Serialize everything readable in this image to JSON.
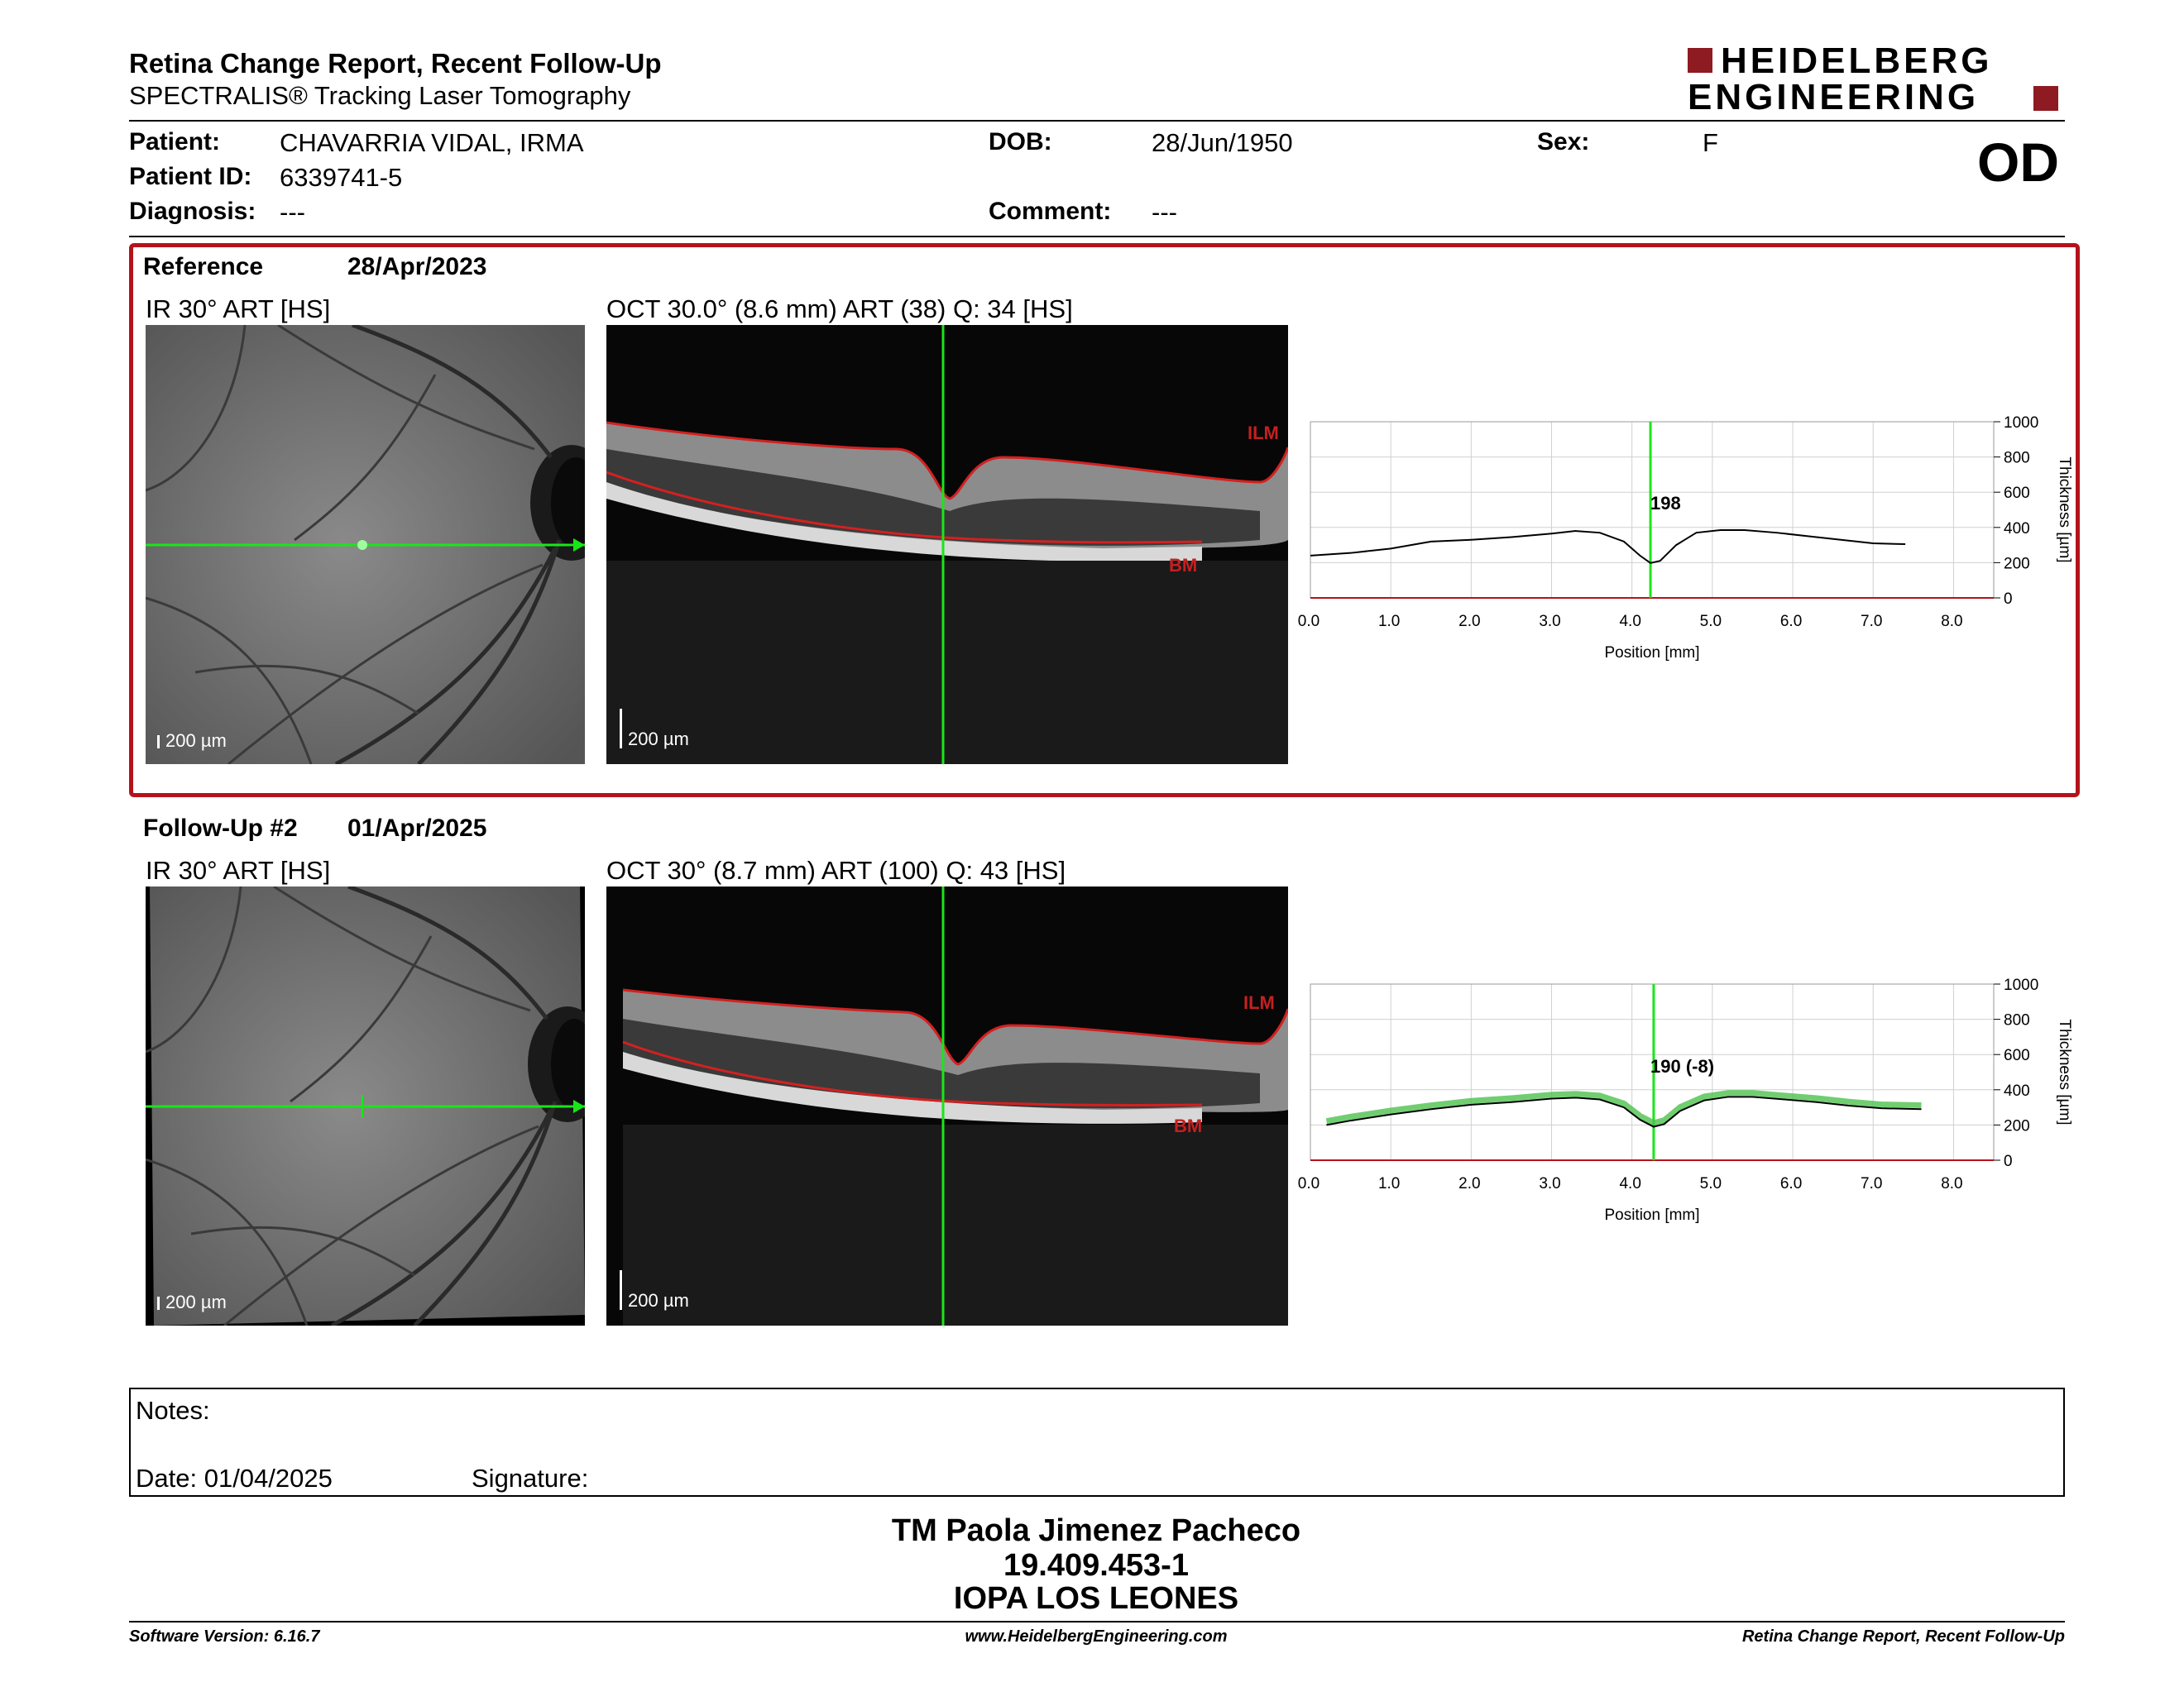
{
  "header": {
    "title": "Retina Change Report, Recent Follow-Up",
    "subtitle": "SPECTRALIS® Tracking Laser Tomography",
    "logo_line1": "HEIDELBERG",
    "logo_line2": "ENGINEERING",
    "eye": "OD"
  },
  "patient": {
    "patient_label": "Patient:",
    "patient_value": "CHAVARRIA VIDAL, IRMA",
    "id_label": "Patient ID:",
    "id_value": "6339741-5",
    "diagnosis_label": "Diagnosis:",
    "diagnosis_value": "---",
    "dob_label": "DOB:",
    "dob_value": "28/Jun/1950",
    "comment_label": "Comment:",
    "comment_value": "---",
    "sex_label": "Sex:",
    "sex_value": "F"
  },
  "colors": {
    "accent_red": "#b5121b",
    "scan_line_green": "#19e619",
    "segmentation_red": "#d42020",
    "thickness_line": "#000000",
    "reference_band": "#4cc24c"
  },
  "reference": {
    "label": "Reference",
    "date": "28/Apr/2023",
    "ir_title": "IR 30° ART [HS]",
    "oct_title": "OCT 30.0° (8.6 mm) ART (38) Q: 34 [HS]",
    "scale_label": "200 µm",
    "ilm_label": "ILM",
    "bm_label": "BM",
    "center_value": "198"
  },
  "followup": {
    "label": "Follow-Up #2",
    "date": "01/Apr/2025",
    "ir_title": "IR 30° ART [HS]",
    "oct_title": "OCT 30° (8.7 mm) ART (100) Q: 43 [HS]",
    "scale_label": "200 µm",
    "ilm_label": "ILM",
    "bm_label": "BM",
    "center_value": "190 (-8)"
  },
  "chart_data": [
    {
      "type": "line",
      "xlabel": "Position [mm]",
      "ylabel": "Thickness [µm]",
      "xlim": [
        0,
        8.5
      ],
      "ylim": [
        0,
        1000
      ],
      "x_ticks": [
        "0.0",
        "1.0",
        "2.0",
        "3.0",
        "4.0",
        "5.0",
        "6.0",
        "7.0",
        "8.0"
      ],
      "y_ticks": [
        "0",
        "200",
        "400",
        "600",
        "800",
        "1000"
      ],
      "marker_x": 4.23,
      "marker_label": "198",
      "grid": true,
      "series": [
        {
          "x": [
            0,
            0.5,
            1.0,
            1.5,
            2.0,
            2.5,
            3.0,
            3.3,
            3.6,
            3.9,
            4.1,
            4.23,
            4.35,
            4.55,
            4.8,
            5.1,
            5.4,
            5.8,
            6.2,
            6.6,
            7.0,
            7.4
          ],
          "values": [
            240,
            255,
            280,
            320,
            330,
            345,
            365,
            380,
            370,
            320,
            240,
            198,
            210,
            300,
            370,
            385,
            385,
            370,
            350,
            330,
            310,
            305
          ]
        }
      ]
    },
    {
      "type": "line",
      "xlabel": "Position [mm]",
      "ylabel": "Thickness [µm]",
      "xlim": [
        0,
        8.5
      ],
      "ylim": [
        0,
        1000
      ],
      "x_ticks": [
        "0.0",
        "1.0",
        "2.0",
        "3.0",
        "4.0",
        "5.0",
        "6.0",
        "7.0",
        "8.0"
      ],
      "y_ticks": [
        "0",
        "200",
        "400",
        "600",
        "800",
        "1000"
      ],
      "marker_x": 4.27,
      "marker_label": "190 (-8)",
      "grid": true,
      "series": [
        {
          "x": [
            0.2,
            0.5,
            1.0,
            1.5,
            2.0,
            2.5,
            3.0,
            3.3,
            3.6,
            3.9,
            4.1,
            4.27,
            4.4,
            4.6,
            4.9,
            5.2,
            5.5,
            5.9,
            6.3,
            6.7,
            7.1,
            7.6
          ],
          "values": [
            200,
            225,
            260,
            290,
            315,
            330,
            350,
            355,
            345,
            300,
            230,
            190,
            205,
            280,
            340,
            360,
            360,
            345,
            330,
            310,
            295,
            290
          ]
        }
      ]
    }
  ],
  "notes": {
    "notes_label": "Notes:",
    "date_label": "Date: 01/04/2025",
    "signature_label": "Signature:"
  },
  "signature_block": {
    "line1": "TM Paola Jimenez Pacheco",
    "line2": "19.409.453-1",
    "line3": "IOPA LOS LEONES"
  },
  "footer": {
    "left": "Software Version: 6.16.7",
    "center": "www.HeidelbergEngineering.com",
    "right": "Retina Change Report, Recent Follow-Up"
  }
}
